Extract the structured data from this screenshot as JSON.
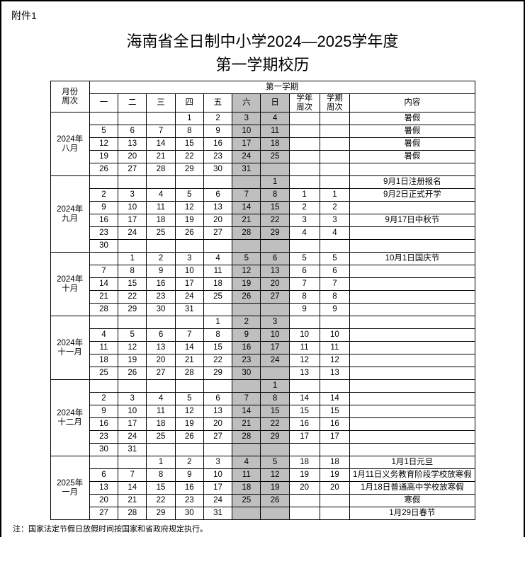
{
  "attachment_label": "附件1",
  "title_line1": "海南省全日制中小学2024—2025学年度",
  "title_line2": "第一学期校历",
  "semester_header": "第一学期",
  "month_header": "月份\n周次",
  "day_headers": [
    "一",
    "二",
    "三",
    "四",
    "五",
    "六",
    "日"
  ],
  "year_week_header": "学年\n周次",
  "sem_week_header": "学期\n周次",
  "content_header": "内容",
  "shaded_color": "#bfbfbf",
  "footnote": "注：国家法定节假日放假时间按国家和省政府规定执行。",
  "months": [
    {
      "label": "2024年\n八月",
      "rows": [
        {
          "d": [
            "",
            "",
            "",
            "1",
            "2",
            "3",
            "4"
          ],
          "yw": "",
          "sw": "",
          "c": "暑假"
        },
        {
          "d": [
            "5",
            "6",
            "7",
            "8",
            "9",
            "10",
            "11"
          ],
          "yw": "",
          "sw": "",
          "c": "暑假"
        },
        {
          "d": [
            "12",
            "13",
            "14",
            "15",
            "16",
            "17",
            "18"
          ],
          "yw": "",
          "sw": "",
          "c": "暑假"
        },
        {
          "d": [
            "19",
            "20",
            "21",
            "22",
            "23",
            "24",
            "25"
          ],
          "yw": "",
          "sw": "",
          "c": "暑假"
        },
        {
          "d": [
            "26",
            "27",
            "28",
            "29",
            "30",
            "31",
            ""
          ],
          "yw": "",
          "sw": "",
          "c": ""
        }
      ]
    },
    {
      "label": "2024年\n九月",
      "rows": [
        {
          "d": [
            "",
            "",
            "",
            "",
            "",
            "",
            "1"
          ],
          "yw": "",
          "sw": "",
          "c": "9月1日注册报名"
        },
        {
          "d": [
            "2",
            "3",
            "4",
            "5",
            "6",
            "7",
            "8"
          ],
          "yw": "1",
          "sw": "1",
          "c": "9月2日正式开学"
        },
        {
          "d": [
            "9",
            "10",
            "11",
            "12",
            "13",
            "14",
            "15"
          ],
          "yw": "2",
          "sw": "2",
          "c": ""
        },
        {
          "d": [
            "16",
            "17",
            "18",
            "19",
            "20",
            "21",
            "22"
          ],
          "yw": "3",
          "sw": "3",
          "c": "9月17日中秋节"
        },
        {
          "d": [
            "23",
            "24",
            "25",
            "26",
            "27",
            "28",
            "29"
          ],
          "yw": "4",
          "sw": "4",
          "c": ""
        },
        {
          "d": [
            "30",
            "",
            "",
            "",
            "",
            "",
            ""
          ],
          "yw": "",
          "sw": "",
          "c": ""
        }
      ]
    },
    {
      "label": "2024年\n十月",
      "rows": [
        {
          "d": [
            "",
            "1",
            "2",
            "3",
            "4",
            "5",
            "6"
          ],
          "yw": "5",
          "sw": "5",
          "c": "10月1日国庆节"
        },
        {
          "d": [
            "7",
            "8",
            "9",
            "10",
            "11",
            "12",
            "13"
          ],
          "yw": "6",
          "sw": "6",
          "c": ""
        },
        {
          "d": [
            "14",
            "15",
            "16",
            "17",
            "18",
            "19",
            "20"
          ],
          "yw": "7",
          "sw": "7",
          "c": ""
        },
        {
          "d": [
            "21",
            "22",
            "23",
            "24",
            "25",
            "26",
            "27"
          ],
          "yw": "8",
          "sw": "8",
          "c": ""
        },
        {
          "d": [
            "28",
            "29",
            "30",
            "31",
            "",
            "",
            ""
          ],
          "yw": "9",
          "sw": "9",
          "c": ""
        }
      ]
    },
    {
      "label": "2024年\n十一月",
      "rows": [
        {
          "d": [
            "",
            "",
            "",
            "",
            "1",
            "2",
            "3"
          ],
          "yw": "",
          "sw": "",
          "c": ""
        },
        {
          "d": [
            "4",
            "5",
            "6",
            "7",
            "8",
            "9",
            "10"
          ],
          "yw": "10",
          "sw": "10",
          "c": ""
        },
        {
          "d": [
            "11",
            "12",
            "13",
            "14",
            "15",
            "16",
            "17"
          ],
          "yw": "11",
          "sw": "11",
          "c": ""
        },
        {
          "d": [
            "18",
            "19",
            "20",
            "21",
            "22",
            "23",
            "24"
          ],
          "yw": "12",
          "sw": "12",
          "c": ""
        },
        {
          "d": [
            "25",
            "26",
            "27",
            "28",
            "29",
            "30",
            ""
          ],
          "yw": "13",
          "sw": "13",
          "c": ""
        }
      ]
    },
    {
      "label": "2024年\n十二月",
      "rows": [
        {
          "d": [
            "",
            "",
            "",
            "",
            "",
            "",
            "1"
          ],
          "yw": "",
          "sw": "",
          "c": ""
        },
        {
          "d": [
            "2",
            "3",
            "4",
            "5",
            "6",
            "7",
            "8"
          ],
          "yw": "14",
          "sw": "14",
          "c": ""
        },
        {
          "d": [
            "9",
            "10",
            "11",
            "12",
            "13",
            "14",
            "15"
          ],
          "yw": "15",
          "sw": "15",
          "c": ""
        },
        {
          "d": [
            "16",
            "17",
            "18",
            "19",
            "20",
            "21",
            "22"
          ],
          "yw": "16",
          "sw": "16",
          "c": ""
        },
        {
          "d": [
            "23",
            "24",
            "25",
            "26",
            "27",
            "28",
            "29"
          ],
          "yw": "17",
          "sw": "17",
          "c": ""
        },
        {
          "d": [
            "30",
            "31",
            "",
            "",
            "",
            "",
            ""
          ],
          "yw": "",
          "sw": "",
          "c": ""
        }
      ]
    },
    {
      "label": "2025年\n一月",
      "rows": [
        {
          "d": [
            "",
            "",
            "1",
            "2",
            "3",
            "4",
            "5"
          ],
          "yw": "18",
          "sw": "18",
          "c": "1月1日元旦"
        },
        {
          "d": [
            "6",
            "7",
            "8",
            "9",
            "10",
            "11",
            "12"
          ],
          "yw": "19",
          "sw": "19",
          "c": "1月11日义务教育阶段学校放寒假"
        },
        {
          "d": [
            "13",
            "14",
            "15",
            "16",
            "17",
            "18",
            "19"
          ],
          "yw": "20",
          "sw": "20",
          "c": "1月18日普通高中学校放寒假"
        },
        {
          "d": [
            "20",
            "21",
            "22",
            "23",
            "24",
            "25",
            "26"
          ],
          "yw": "",
          "sw": "",
          "c": "寒假"
        },
        {
          "d": [
            "27",
            "28",
            "29",
            "30",
            "31",
            "",
            ""
          ],
          "yw": "",
          "sw": "",
          "c": "1月29日春节"
        }
      ]
    }
  ]
}
